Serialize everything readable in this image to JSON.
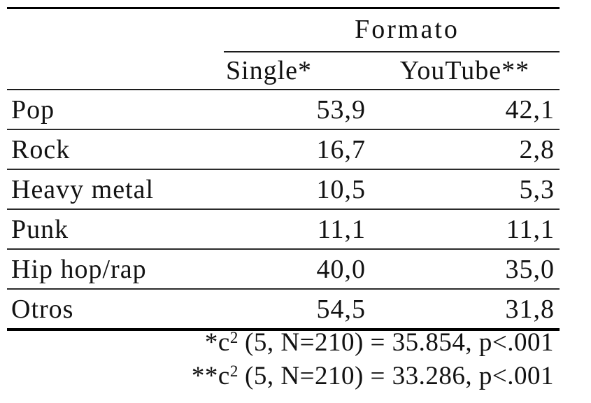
{
  "table": {
    "group_header": "Formato",
    "column_headers": {
      "single": "Single*",
      "youtube": "YouTube**"
    },
    "rows": [
      {
        "label": "Pop",
        "single": "53,9",
        "youtube": "42,1"
      },
      {
        "label": "Rock",
        "single": "16,7",
        "youtube": "2,8"
      },
      {
        "label": "Heavy metal",
        "single": "10,5",
        "youtube": "5,3"
      },
      {
        "label": "Punk",
        "single": "11,1",
        "youtube": "11,1"
      },
      {
        "label": "Hip hop/rap",
        "single": "40,0",
        "youtube": "35,0"
      },
      {
        "label": "Otros",
        "single": "54,5",
        "youtube": "31,8"
      }
    ],
    "footnotes": [
      {
        "marker": "*",
        "stat_base": "c",
        "stat_sup": "2",
        "rest": " (5, N=210) = 35.854, p<.001"
      },
      {
        "marker": "**",
        "stat_base": "c",
        "stat_sup": "2",
        "rest": " (5, N=210) = 33.286, p<.001"
      }
    ]
  },
  "colors": {
    "text": "#121212",
    "rule_heavy": "#000000",
    "rule_light": "#2b2b2b",
    "background": "#ffffff"
  },
  "chart_data": {
    "type": "table",
    "title": "Formato",
    "categories": [
      "Pop",
      "Rock",
      "Heavy metal",
      "Punk",
      "Hip hop/rap",
      "Otros"
    ],
    "series": [
      {
        "name": "Single*",
        "values": [
          53.9,
          16.7,
          10.5,
          11.1,
          40.0,
          54.5
        ]
      },
      {
        "name": "YouTube**",
        "values": [
          42.1,
          2.8,
          5.3,
          11.1,
          35.0,
          31.8
        ]
      }
    ],
    "annotations": [
      "*c2 (5, N=210) = 35.854, p<.001",
      "**c2 (5, N=210) = 33.286, p<.001"
    ]
  }
}
